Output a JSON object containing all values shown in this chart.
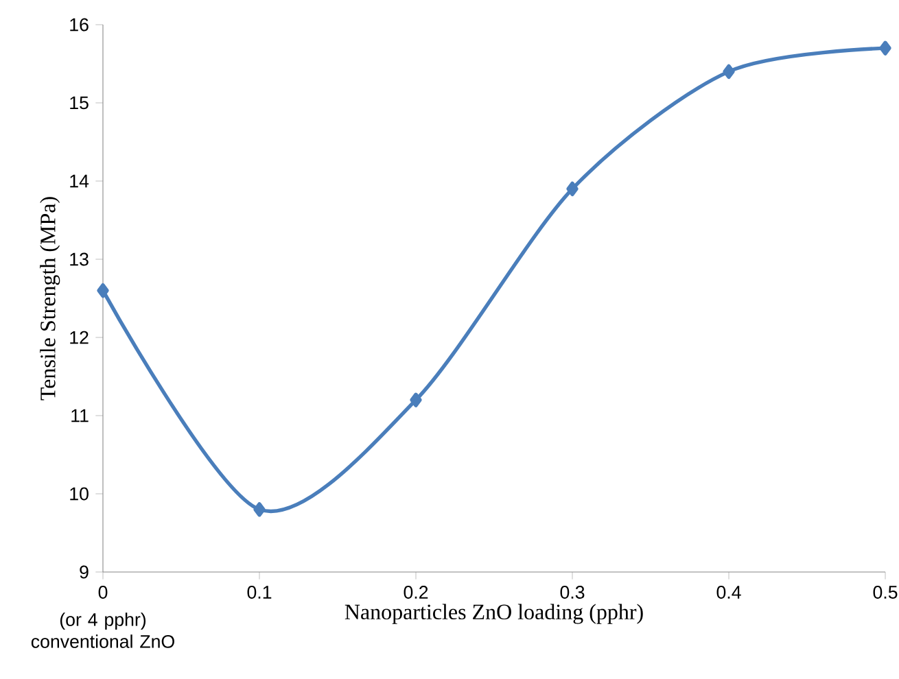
{
  "chart_data": {
    "type": "line",
    "xlabel": "Nanoparticles ZnO loading  (pphr)",
    "ylabel": "Tensile Strength (MPa)",
    "x": [
      0,
      0.1,
      0.2,
      0.3,
      0.4,
      0.5
    ],
    "series": [
      {
        "color": "#4a7ebb",
        "values": [
          12.6,
          9.8,
          11.2,
          13.9,
          15.4,
          15.7
        ]
      }
    ],
    "xlim": [
      0,
      0.5
    ],
    "xticks": [
      0,
      0.1,
      0.2,
      0.3,
      0.4,
      0.5
    ],
    "ylim": [
      9,
      16
    ],
    "yticks": [
      9,
      10,
      11,
      12,
      13,
      14,
      15,
      16
    ],
    "marker": "diamond",
    "line_style": "solid",
    "grid": false,
    "annotations": [
      "(or 4 pphr) conventional ZnO"
    ]
  }
}
